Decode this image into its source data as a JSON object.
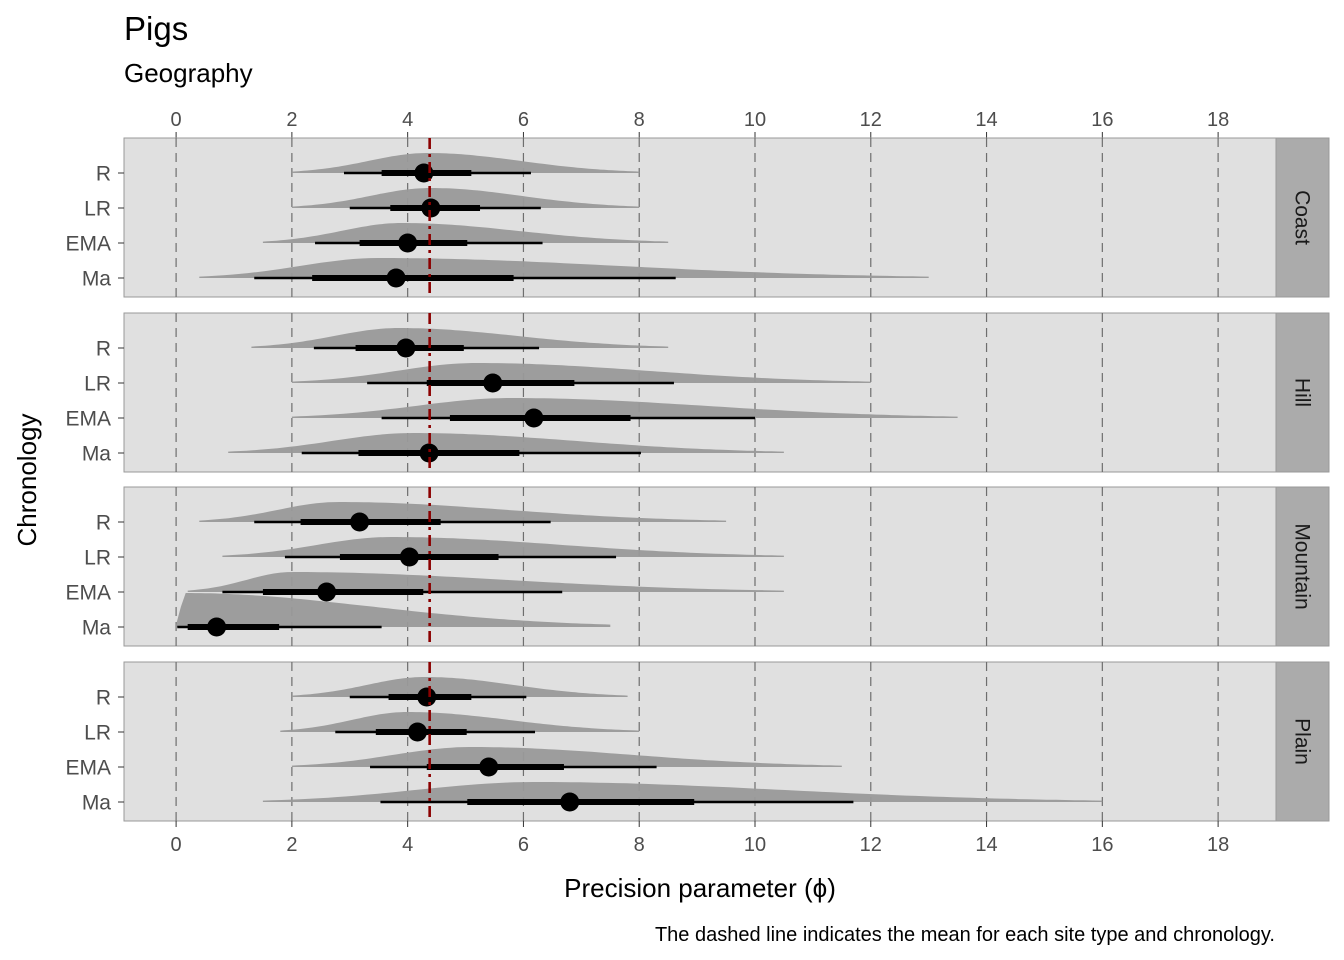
{
  "chart_data": {
    "type": "halfeye",
    "title": "Pigs",
    "subtitle": "Geography",
    "xlabel": "Precision parameter (ϕ)",
    "ylabel": "Chronology",
    "caption": "The dashed line indicates the mean for each site type and chronology.",
    "xlim": [
      -0.9,
      19.0
    ],
    "x_ticks": [
      "0",
      "2",
      "4",
      "6",
      "8",
      "10",
      "12",
      "14",
      "16",
      "18"
    ],
    "x_tick_values": [
      0,
      2,
      4,
      6,
      8,
      10,
      12,
      14,
      16,
      18
    ],
    "categories": [
      "R",
      "LR",
      "EMA",
      "Ma"
    ],
    "reference_line": {
      "value": 4.38,
      "color": "#8b0000",
      "style": "dashed"
    },
    "grid": "vertical-dashed",
    "colors": {
      "panel_bg": "#e0e0e0",
      "strip_bg": "#ababab",
      "density": "#999999",
      "point": "#000000"
    },
    "panels": [
      {
        "label": "Coast",
        "rows": [
          {
            "category": "R",
            "median": 4.28,
            "inner": [
              3.55,
              5.1
            ],
            "outer": [
              2.9,
              6.13
            ],
            "range": [
              2.0,
              8.0
            ],
            "peak": 4.35
          },
          {
            "category": "LR",
            "median": 4.4,
            "inner": [
              3.7,
              5.25
            ],
            "outer": [
              3.0,
              6.3
            ],
            "range": [
              2.0,
              8.0
            ],
            "peak": 4.4
          },
          {
            "category": "EMA",
            "median": 4.0,
            "inner": [
              3.17,
              5.03
            ],
            "outer": [
              2.4,
              6.33
            ],
            "range": [
              1.5,
              8.5
            ],
            "peak": 3.9
          },
          {
            "category": "Ma",
            "median": 3.8,
            "inner": [
              2.35,
              5.83
            ],
            "outer": [
              1.35,
              8.63
            ],
            "range": [
              0.4,
              13.0
            ],
            "peak": 3.5
          }
        ]
      },
      {
        "label": "Hill",
        "rows": [
          {
            "category": "R",
            "median": 3.97,
            "inner": [
              3.1,
              4.97
            ],
            "outer": [
              2.38,
              6.27
            ],
            "range": [
              1.3,
              8.5
            ],
            "peak": 3.85
          },
          {
            "category": "LR",
            "median": 5.47,
            "inner": [
              4.33,
              6.88
            ],
            "outer": [
              3.3,
              8.6
            ],
            "range": [
              2.0,
              12.0
            ],
            "peak": 5.2
          },
          {
            "category": "EMA",
            "median": 6.18,
            "inner": [
              4.73,
              7.85
            ],
            "outer": [
              3.55,
              10.0
            ],
            "range": [
              2.0,
              13.5
            ],
            "peak": 5.8
          },
          {
            "category": "Ma",
            "median": 4.37,
            "inner": [
              3.15,
              5.93
            ],
            "outer": [
              2.17,
              8.03
            ],
            "range": [
              0.9,
              10.5
            ],
            "peak": 4.1
          }
        ]
      },
      {
        "label": "Mountain",
        "rows": [
          {
            "category": "R",
            "median": 3.17,
            "inner": [
              2.15,
              4.57
            ],
            "outer": [
              1.35,
              6.47
            ],
            "range": [
              0.4,
              9.5
            ],
            "peak": 2.8
          },
          {
            "category": "LR",
            "median": 4.03,
            "inner": [
              2.83,
              5.57
            ],
            "outer": [
              1.88,
              7.6
            ],
            "range": [
              0.8,
              10.5
            ],
            "peak": 3.7
          },
          {
            "category": "EMA",
            "median": 2.6,
            "inner": [
              1.5,
              4.27
            ],
            "outer": [
              0.8,
              6.67
            ],
            "range": [
              0.2,
              10.5
            ],
            "peak": 2.0
          },
          {
            "category": "Ma",
            "median": 0.7,
            "inner": [
              0.2,
              1.78
            ],
            "outer": [
              0.02,
              3.55
            ],
            "range": [
              0.0,
              7.5
            ],
            "peak": 0.15
          }
        ]
      },
      {
        "label": "Plain",
        "rows": [
          {
            "category": "R",
            "median": 4.33,
            "inner": [
              3.67,
              5.1
            ],
            "outer": [
              3.0,
              6.05
            ],
            "range": [
              2.0,
              7.8
            ],
            "peak": 4.3
          },
          {
            "category": "LR",
            "median": 4.17,
            "inner": [
              3.45,
              5.02
            ],
            "outer": [
              2.75,
              6.2
            ],
            "range": [
              1.8,
              8.0
            ],
            "peak": 4.0
          },
          {
            "category": "EMA",
            "median": 5.4,
            "inner": [
              4.33,
              6.7
            ],
            "outer": [
              3.35,
              8.3
            ],
            "range": [
              2.0,
              11.5
            ],
            "peak": 5.1
          },
          {
            "category": "Ma",
            "median": 6.8,
            "inner": [
              5.03,
              8.95
            ],
            "outer": [
              3.53,
              11.7
            ],
            "range": [
              1.5,
              16.0
            ],
            "peak": 6.2
          }
        ]
      }
    ]
  }
}
